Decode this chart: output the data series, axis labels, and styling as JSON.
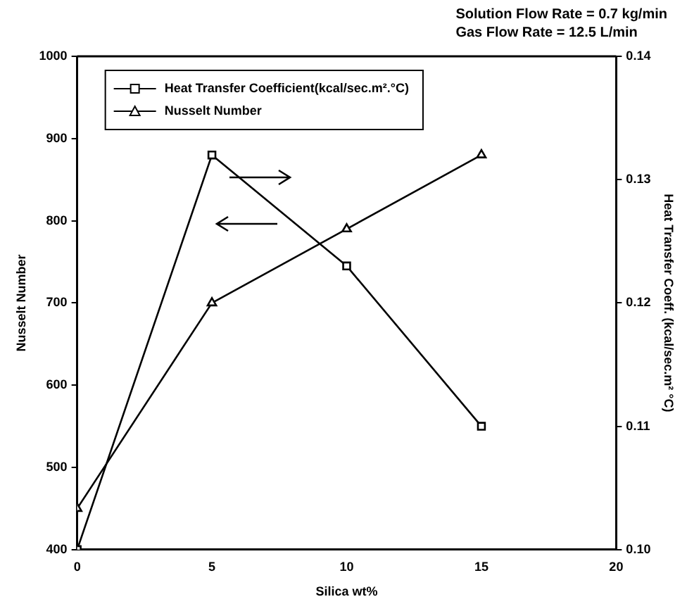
{
  "chart_data": {
    "type": "line",
    "xlabel": "Silica wt%",
    "ylabel": "Nusselt Number",
    "y2label": "Heat Transfer Coeff. (kcal/sec.m² °C)",
    "x": [
      0,
      5,
      10,
      15
    ],
    "xlim": [
      0,
      20
    ],
    "xticks": [
      0,
      5,
      10,
      15,
      20
    ],
    "ylim": [
      400,
      1000
    ],
    "yticks": [
      400,
      500,
      600,
      700,
      800,
      900,
      1000
    ],
    "y2lim": [
      0.1,
      0.14
    ],
    "y2ticks": [
      {
        "value": 0.1,
        "label": "0.10"
      },
      0.11,
      0.12,
      0.13,
      0.14
    ],
    "series": [
      {
        "name": "Heat Transfer Coefficient(kcal/sec.m².°C)",
        "color": "#000000",
        "axis": "y2",
        "marker": "square",
        "values": [
          0.1,
          0.132,
          0.123,
          0.11
        ]
      },
      {
        "name": "Nusselt Number",
        "color": "#000000",
        "axis": "y",
        "marker": "triangle",
        "values": [
          450,
          700,
          790,
          880
        ]
      }
    ],
    "annotations": [
      "Solution Flow Rate = 0.7 kg/min",
      "Gas Flow Rate = 12.5 L/min"
    ],
    "legend": "top left",
    "grid": false,
    "line_style": "solid"
  }
}
